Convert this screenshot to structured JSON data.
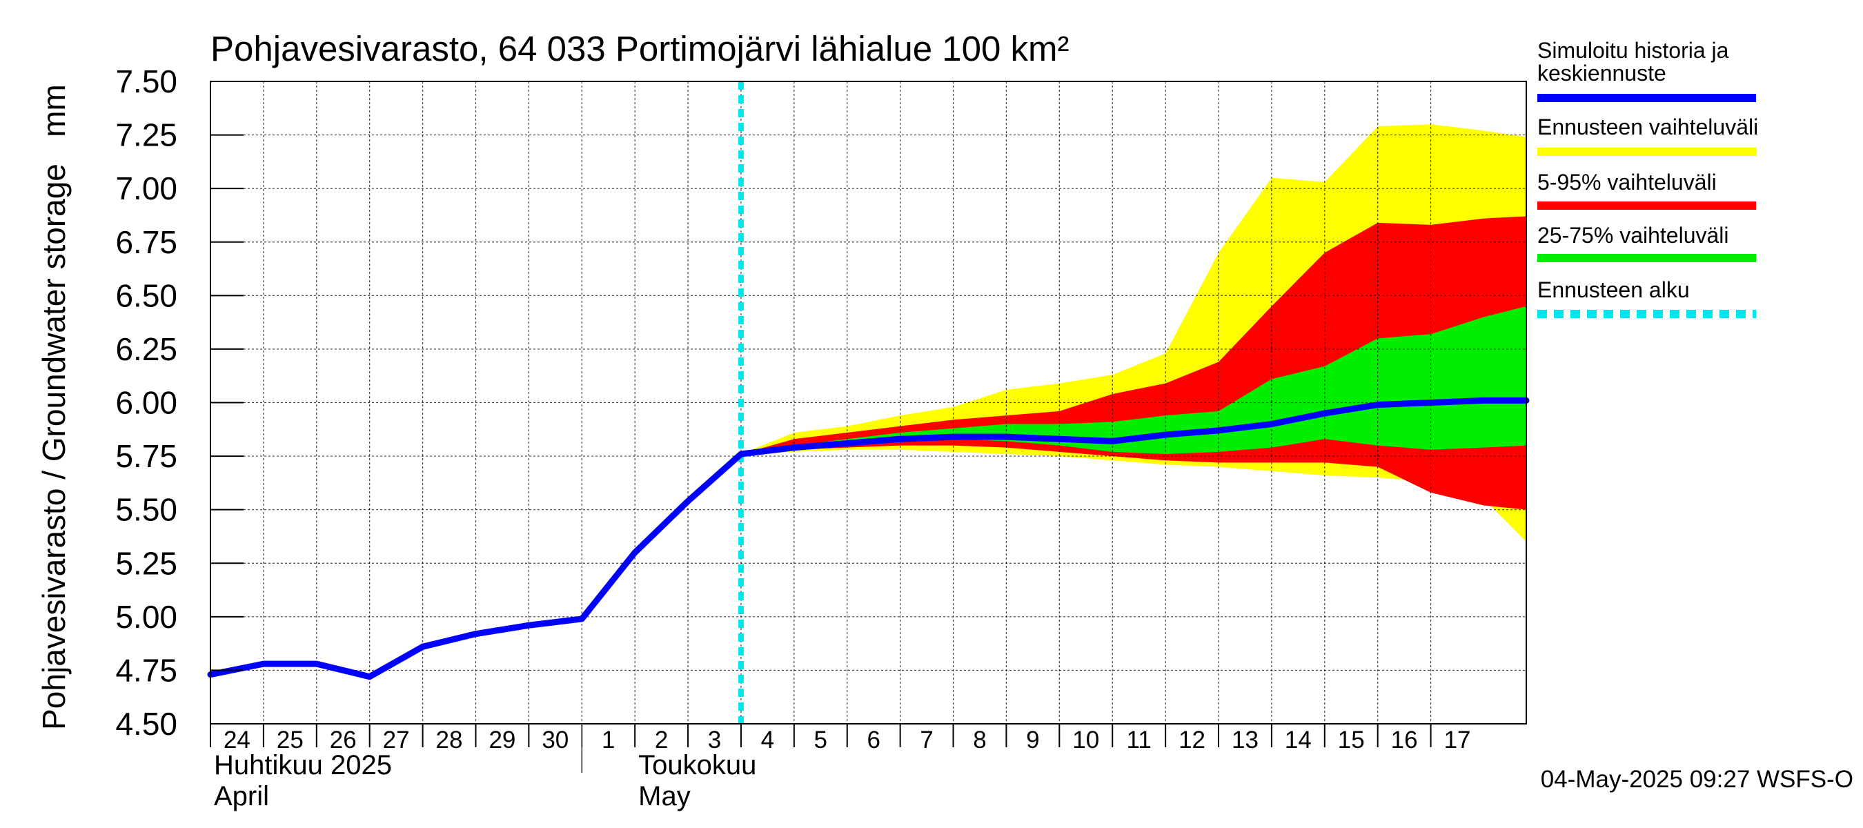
{
  "chart_data": {
    "type": "area",
    "title": "Pohjavesivarasto, 64 033 Portimojärvi lähialue 100 km²",
    "ylabel": "Pohjavesivarasto / Groundwater storage   mm",
    "ylim": [
      4.5,
      7.5
    ],
    "yticks": [
      "7.50",
      "7.25",
      "7.00",
      "6.75",
      "6.50",
      "6.25",
      "6.00",
      "5.75",
      "5.50",
      "5.25",
      "5.00",
      "4.75",
      "4.50"
    ],
    "xlim": [
      0,
      24.8
    ],
    "xticks": [
      "24",
      "25",
      "26",
      "27",
      "28",
      "29",
      "30",
      "1",
      "2",
      "3",
      "4",
      "5",
      "6",
      "7",
      "8",
      "9",
      "10",
      "11",
      "12",
      "13",
      "14",
      "15",
      "16",
      "17"
    ],
    "month_labels": [
      {
        "line1": "Huhtikuu  2025",
        "line2": "April",
        "at": 0
      },
      {
        "line1": "Toukokuu",
        "line2": "May",
        "at": 8
      }
    ],
    "month_divider_at": 7,
    "grid": true,
    "forecast_start": 10,
    "footer": "04-May-2025 09:27 WSFS-O",
    "legend": [
      {
        "label_lines": [
          "Simuloitu historia ja",
          "keskiennuste"
        ],
        "color": "#0000ff",
        "style": "solid"
      },
      {
        "label_lines": [
          "Ennusteen vaihteluväli"
        ],
        "color": "#ffff00",
        "style": "solid"
      },
      {
        "label_lines": [
          "5-95% vaihteluväli"
        ],
        "color": "#ff0000",
        "style": "solid"
      },
      {
        "label_lines": [
          "25-75% vaihteluväli"
        ],
        "color": "#00ee00",
        "style": "solid"
      },
      {
        "label_lines": [
          "Ennusteen alku"
        ],
        "color": "#00e5ee",
        "style": "dashed"
      }
    ],
    "history": {
      "name": "Simuloitu historia ja keskiennuste",
      "x": [
        0,
        1,
        2,
        3,
        4,
        5,
        6,
        7,
        8,
        9,
        10
      ],
      "y": [
        4.73,
        4.78,
        4.78,
        4.72,
        4.86,
        4.92,
        4.96,
        4.99,
        5.3,
        5.54,
        5.76
      ]
    },
    "forecast_x": [
      10,
      11,
      12,
      13,
      14,
      15,
      16,
      17,
      18,
      19,
      20,
      21,
      22,
      23,
      24,
      24.8
    ],
    "bands": [
      {
        "name": "Ennusteen vaihteluväli",
        "color": "#ffff00",
        "upper": [
          5.76,
          5.86,
          5.89,
          5.94,
          5.98,
          6.06,
          6.09,
          6.13,
          6.23,
          6.7,
          7.05,
          7.03,
          7.29,
          7.3,
          7.27,
          7.24
        ],
        "lower": [
          5.76,
          5.77,
          5.78,
          5.78,
          5.77,
          5.76,
          5.75,
          5.73,
          5.71,
          5.7,
          5.68,
          5.66,
          5.65,
          5.63,
          5.55,
          5.35
        ]
      },
      {
        "name": "5-95% vaihteluväli",
        "color": "#ff0000",
        "upper": [
          5.76,
          5.83,
          5.86,
          5.89,
          5.92,
          5.94,
          5.96,
          6.04,
          6.09,
          6.19,
          6.45,
          6.7,
          6.84,
          6.83,
          6.86,
          6.87
        ],
        "lower": [
          5.76,
          5.78,
          5.79,
          5.8,
          5.8,
          5.79,
          5.77,
          5.75,
          5.73,
          5.72,
          5.72,
          5.72,
          5.7,
          5.58,
          5.52,
          5.5
        ]
      },
      {
        "name": "25-75% vaihteluväli",
        "color": "#00ee00",
        "upper": [
          5.76,
          5.8,
          5.83,
          5.86,
          5.88,
          5.9,
          5.9,
          5.91,
          5.94,
          5.96,
          6.11,
          6.17,
          6.3,
          6.32,
          6.4,
          6.45
        ],
        "lower": [
          5.76,
          5.79,
          5.81,
          5.82,
          5.83,
          5.82,
          5.8,
          5.77,
          5.76,
          5.77,
          5.79,
          5.83,
          5.8,
          5.78,
          5.79,
          5.8
        ]
      }
    ],
    "median": {
      "name": "keskiennuste",
      "y": [
        5.76,
        5.79,
        5.81,
        5.83,
        5.84,
        5.84,
        5.83,
        5.82,
        5.85,
        5.87,
        5.9,
        5.95,
        5.99,
        6.0,
        6.01,
        6.01
      ]
    }
  }
}
